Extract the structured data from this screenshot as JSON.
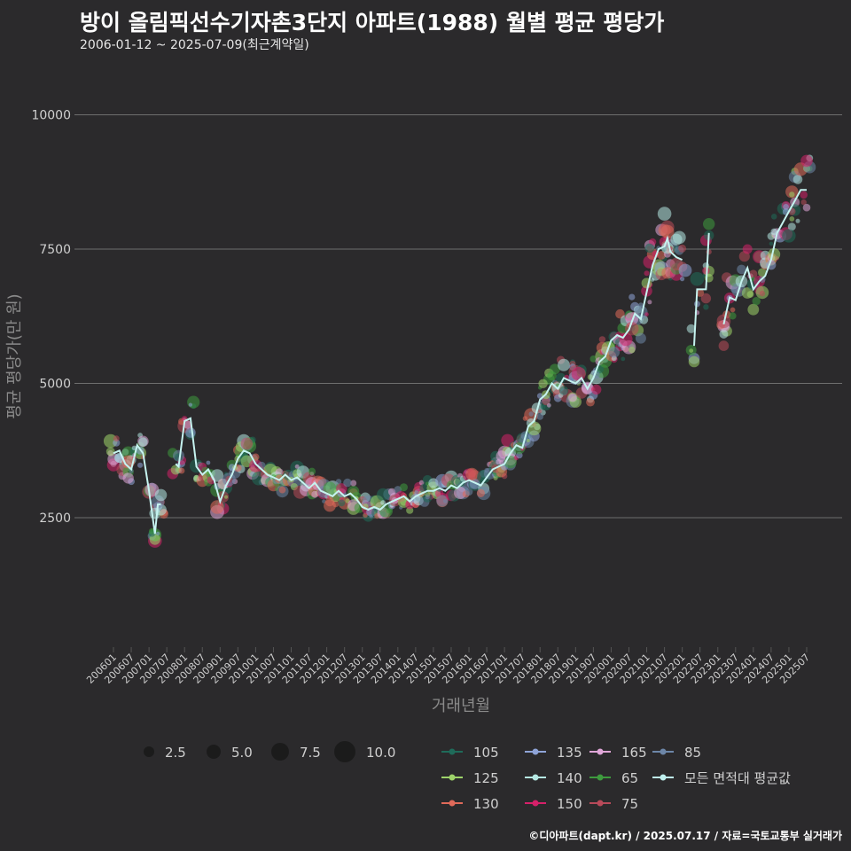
{
  "title": "방이 올림픽선수기자촌3단지 아파트(1988) 월별 평균 평당가",
  "subtitle": "2006-01-12 ~ 2025-07-09(최근계약일)",
  "caption": "©디아파트(dapt.kr) / 2025.07.17 / 자료=국토교통부 실거래가",
  "chart_data": {
    "type": "scatter",
    "xlabel": "거래년월",
    "ylabel": "평균 평당가(만 원)",
    "x_ticks": [
      "200601",
      "200607",
      "200701",
      "200707",
      "200801",
      "200807",
      "200901",
      "200907",
      "201001",
      "201007",
      "201101",
      "201107",
      "201201",
      "201207",
      "201301",
      "201307",
      "201401",
      "201407",
      "201501",
      "201507",
      "201601",
      "201607",
      "201701",
      "201707",
      "201801",
      "201807",
      "201901",
      "201907",
      "202001",
      "202007",
      "202101",
      "202107",
      "202201",
      "202207",
      "202301",
      "202307",
      "202401",
      "202407",
      "202501",
      "202507"
    ],
    "y_ticks": [
      2500,
      5000,
      7500,
      10000
    ],
    "ylim": [
      0,
      11000
    ],
    "grid": true,
    "size_legend": [
      2.5,
      5.0,
      7.5,
      10.0
    ],
    "series_legend": [
      {
        "name": "105",
        "color": "#1f6b5a"
      },
      {
        "name": "125",
        "color": "#9ed36a"
      },
      {
        "name": "130",
        "color": "#e06a5a"
      },
      {
        "name": "135",
        "color": "#8fa4d8"
      },
      {
        "name": "140",
        "color": "#b5e8e3"
      },
      {
        "name": "150",
        "color": "#d6206a"
      },
      {
        "name": "165",
        "color": "#e0a6d8"
      },
      {
        "name": "65",
        "color": "#3e9a3e"
      },
      {
        "name": "75",
        "color": "#b84a5a"
      },
      {
        "name": "85",
        "color": "#6d86a8"
      },
      {
        "name": "모든 면적대 평균값",
        "color": "#bff0ee"
      }
    ],
    "average_line": [
      [
        "2006-01",
        3700
      ],
      [
        "2006-03",
        3750
      ],
      [
        "2006-05",
        3500
      ],
      [
        "2006-07",
        3400
      ],
      [
        "2006-09",
        3850
      ],
      [
        "2006-11",
        3700
      ],
      [
        "2007-01",
        3000
      ],
      [
        "2007-03",
        2200
      ],
      [
        "2007-04",
        2750
      ],
      [
        "2007-05",
        2750
      ],
      [
        "2007-10",
        3500
      ],
      [
        "2007-11",
        3450
      ],
      [
        "2008-01",
        4300
      ],
      [
        "2008-03",
        4350
      ],
      [
        "2008-05",
        3450
      ],
      [
        "2008-07",
        3300
      ],
      [
        "2008-09",
        3400
      ],
      [
        "2008-11",
        3200
      ],
      [
        "2009-01",
        2800
      ],
      [
        "2009-03",
        3100
      ],
      [
        "2009-05",
        3300
      ],
      [
        "2009-07",
        3600
      ],
      [
        "2009-09",
        3750
      ],
      [
        "2009-11",
        3700
      ],
      [
        "2010-01",
        3500
      ],
      [
        "2010-03",
        3400
      ],
      [
        "2010-05",
        3300
      ],
      [
        "2010-07",
        3250
      ],
      [
        "2010-09",
        3200
      ],
      [
        "2010-11",
        3300
      ],
      [
        "2011-01",
        3200
      ],
      [
        "2011-03",
        3250
      ],
      [
        "2011-05",
        3150
      ],
      [
        "2011-07",
        3050
      ],
      [
        "2011-09",
        3150
      ],
      [
        "2011-11",
        3000
      ],
      [
        "2012-01",
        2950
      ],
      [
        "2012-03",
        2900
      ],
      [
        "2012-05",
        3000
      ],
      [
        "2012-07",
        2900
      ],
      [
        "2012-09",
        2950
      ],
      [
        "2012-11",
        2850
      ],
      [
        "2013-01",
        2700
      ],
      [
        "2013-03",
        2650
      ],
      [
        "2013-05",
        2700
      ],
      [
        "2013-07",
        2650
      ],
      [
        "2013-09",
        2750
      ],
      [
        "2013-11",
        2800
      ],
      [
        "2014-01",
        2850
      ],
      [
        "2014-03",
        2900
      ],
      [
        "2014-05",
        2800
      ],
      [
        "2014-07",
        2900
      ],
      [
        "2014-09",
        2950
      ],
      [
        "2014-11",
        3000
      ],
      [
        "2015-01",
        3000
      ],
      [
        "2015-03",
        3050
      ],
      [
        "2015-05",
        3000
      ],
      [
        "2015-07",
        3100
      ],
      [
        "2015-09",
        3050
      ],
      [
        "2015-11",
        3150
      ],
      [
        "2016-01",
        3200
      ],
      [
        "2016-03",
        3150
      ],
      [
        "2016-05",
        3100
      ],
      [
        "2016-07",
        3250
      ],
      [
        "2016-09",
        3400
      ],
      [
        "2016-11",
        3450
      ],
      [
        "2017-01",
        3500
      ],
      [
        "2017-03",
        3700
      ],
      [
        "2017-05",
        3850
      ],
      [
        "2017-07",
        3800
      ],
      [
        "2017-09",
        4200
      ],
      [
        "2017-11",
        4300
      ],
      [
        "2018-01",
        4700
      ],
      [
        "2018-03",
        4800
      ],
      [
        "2018-05",
        5000
      ],
      [
        "2018-07",
        4900
      ],
      [
        "2018-09",
        5100
      ],
      [
        "2018-11",
        5050
      ],
      [
        "2019-01",
        5000
      ],
      [
        "2019-03",
        5100
      ],
      [
        "2019-05",
        4900
      ],
      [
        "2019-07",
        5100
      ],
      [
        "2019-09",
        5400
      ],
      [
        "2019-11",
        5500
      ],
      [
        "2020-01",
        5800
      ],
      [
        "2020-03",
        5900
      ],
      [
        "2020-05",
        5850
      ],
      [
        "2020-07",
        6000
      ],
      [
        "2020-09",
        6300
      ],
      [
        "2020-11",
        6200
      ],
      [
        "2021-01",
        6700
      ],
      [
        "2021-03",
        7200
      ],
      [
        "2021-05",
        7500
      ],
      [
        "2021-07",
        7550
      ],
      [
        "2021-08",
        7700
      ],
      [
        "2021-09",
        7450
      ],
      [
        "2021-11",
        7350
      ],
      [
        "2022-01",
        7300
      ],
      [
        "2022-05",
        5700
      ],
      [
        "2022-06",
        6750
      ],
      [
        "2022-09",
        6750
      ],
      [
        "2022-10",
        7800
      ],
      [
        "2023-03",
        6100
      ],
      [
        "2023-05",
        6600
      ],
      [
        "2023-07",
        6550
      ],
      [
        "2023-09",
        6900
      ],
      [
        "2023-11",
        7150
      ],
      [
        "2024-01",
        6750
      ],
      [
        "2024-03",
        6900
      ],
      [
        "2024-05",
        7000
      ],
      [
        "2024-07",
        7300
      ],
      [
        "2024-09",
        7800
      ],
      [
        "2024-11",
        8000
      ],
      [
        "2025-01",
        8200
      ],
      [
        "2025-03",
        8400
      ],
      [
        "2025-05",
        8600
      ],
      [
        "2025-07",
        8600
      ]
    ]
  }
}
